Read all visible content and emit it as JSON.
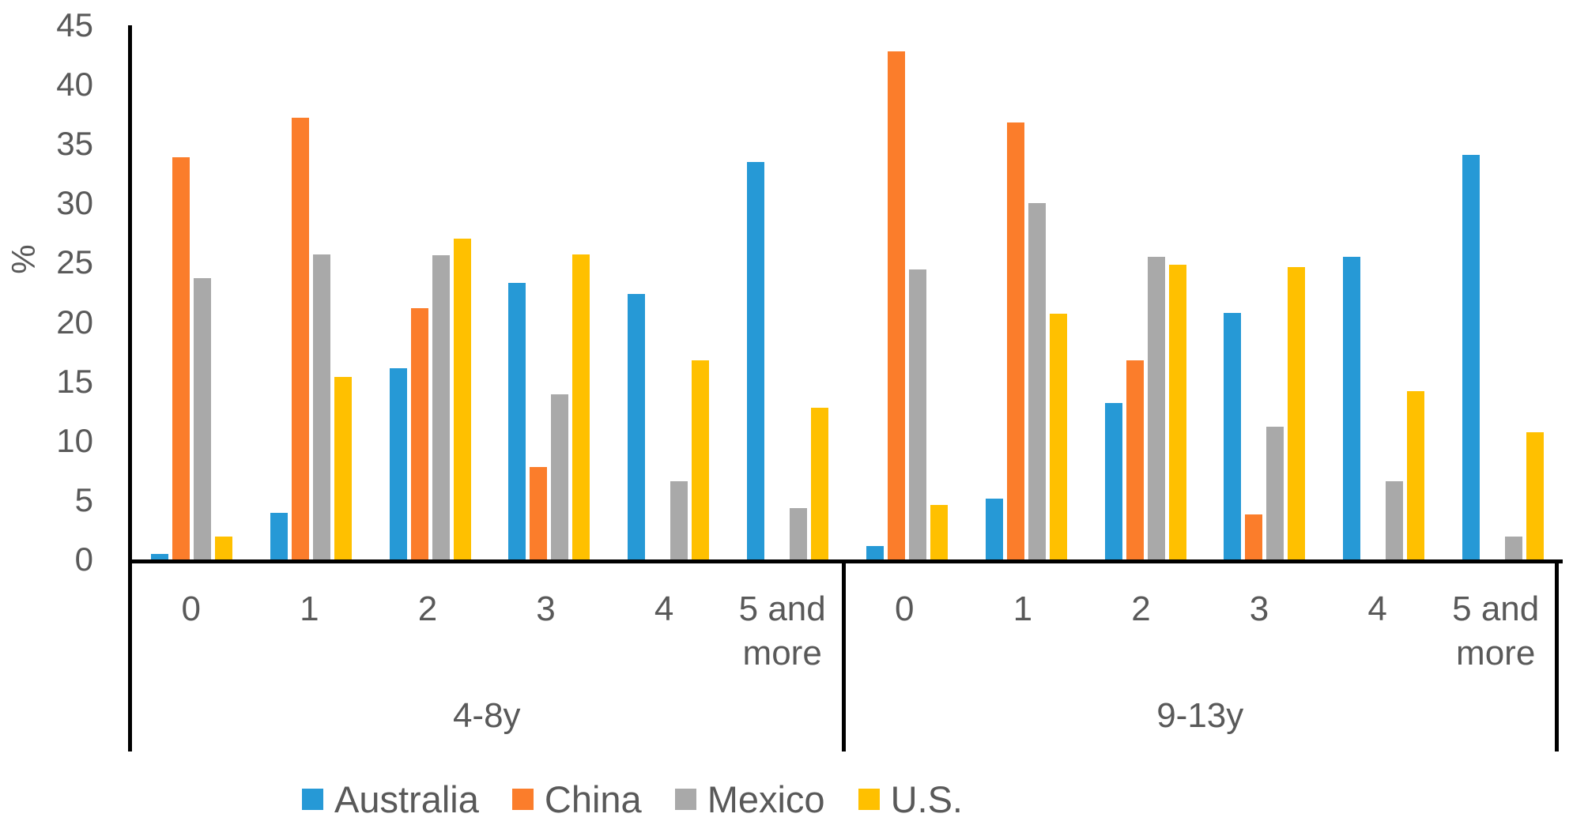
{
  "chart_data": {
    "type": "bar",
    "title": "",
    "ylabel": "%",
    "ylim": [
      0,
      45
    ],
    "yticks": [
      0,
      5,
      10,
      15,
      20,
      25,
      30,
      35,
      40,
      45
    ],
    "grid": false,
    "legend_position": "bottom",
    "axis_color": "#000000",
    "text_color": "#595959",
    "panel_groups": [
      {
        "label": "4-8y"
      },
      {
        "label": "9-13y"
      }
    ],
    "categories": [
      "0",
      "1",
      "2",
      "3",
      "4",
      "5 and more"
    ],
    "series": [
      {
        "name": "Australia",
        "color": "#2699D6",
        "values": {
          "4-8y": [
            0.5,
            3.9,
            16.1,
            23.3,
            22.4,
            33.5
          ],
          "9-13y": [
            1.1,
            5.1,
            13.2,
            20.8,
            25.5,
            34.1
          ]
        }
      },
      {
        "name": "China",
        "color": "#FB7D2B",
        "values": {
          "4-8y": [
            33.9,
            37.2,
            21.2,
            7.8,
            0,
            0
          ],
          "9-13y": [
            42.8,
            36.8,
            16.8,
            3.8,
            0,
            0
          ]
        }
      },
      {
        "name": "Mexico",
        "color": "#A9A9A9",
        "values": {
          "4-8y": [
            23.7,
            25.7,
            25.6,
            13.9,
            6.6,
            4.3
          ],
          "9-13y": [
            24.4,
            30.0,
            25.5,
            11.2,
            6.6,
            1.9
          ]
        }
      },
      {
        "name": "U.S.",
        "color": "#FFC000",
        "values": {
          "4-8y": [
            1.9,
            15.4,
            27.0,
            25.7,
            16.8,
            12.8
          ],
          "9-13y": [
            4.6,
            20.7,
            24.8,
            24.6,
            14.2,
            10.7
          ]
        }
      }
    ]
  }
}
